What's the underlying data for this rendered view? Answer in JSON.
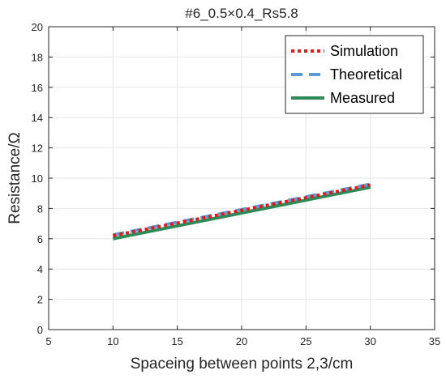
{
  "chart_data": {
    "type": "line",
    "title": "#6_0.5×0.4_Rs5.8",
    "xlabel": "Spaceing between points 2,3/cm",
    "ylabel": "Resistance/Ω",
    "xlim": [
      5,
      35
    ],
    "ylim": [
      0,
      20
    ],
    "xticks": [
      5,
      10,
      15,
      20,
      25,
      30,
      35
    ],
    "yticks": [
      0,
      2,
      4,
      6,
      8,
      10,
      12,
      14,
      16,
      18,
      20
    ],
    "grid": true,
    "legend_position": "top-right",
    "series": [
      {
        "name": "Simulation",
        "x": [
          10,
          30
        ],
        "y": [
          6.2,
          9.55
        ],
        "color": "#e31a1c",
        "style": "dotted"
      },
      {
        "name": "Theoretical",
        "x": [
          10,
          30
        ],
        "y": [
          6.25,
          9.6
        ],
        "color": "#5b9bd5",
        "style": "dashed"
      },
      {
        "name": "Measured",
        "x": [
          10,
          30
        ],
        "y": [
          6.0,
          9.4
        ],
        "color": "#2e8b57",
        "style": "solid"
      }
    ]
  }
}
